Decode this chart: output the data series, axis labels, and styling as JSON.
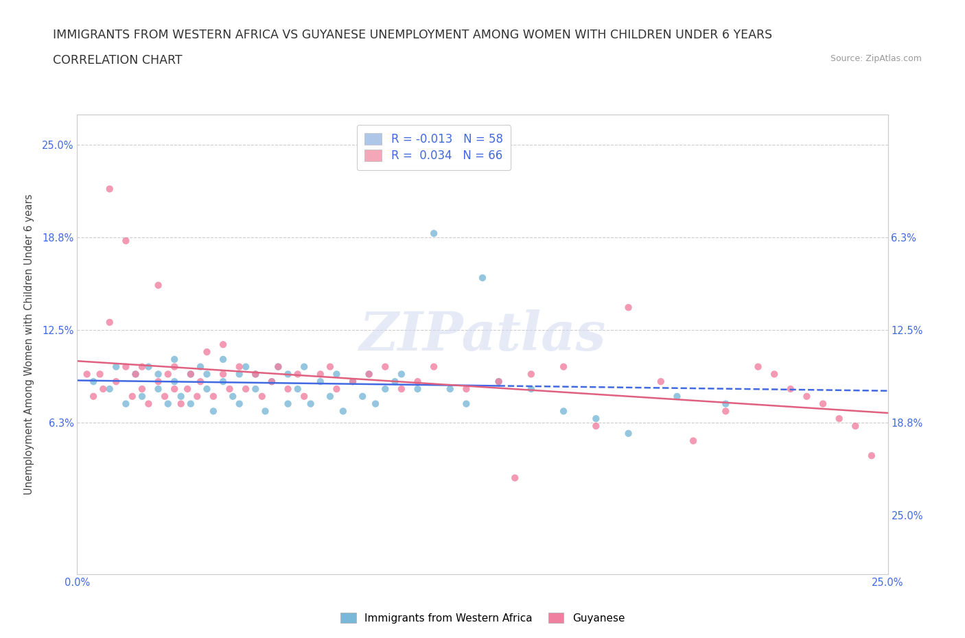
{
  "title_line1": "IMMIGRANTS FROM WESTERN AFRICA VS GUYANESE UNEMPLOYMENT AMONG WOMEN WITH CHILDREN UNDER 6 YEARS",
  "title_line2": "CORRELATION CHART",
  "source_text": "Source: ZipAtlas.com",
  "ylabel": "Unemployment Among Women with Children Under 6 years",
  "xlim": [
    0.0,
    0.25
  ],
  "ylim": [
    -0.04,
    0.27
  ],
  "ytick_positions": [
    0.0,
    0.0625,
    0.125,
    0.1875,
    0.25
  ],
  "left_ytick_labels": [
    "",
    "6.3%",
    "12.5%",
    "18.8%",
    "25.0%"
  ],
  "right_ytick_labels": [
    "25.0%",
    "18.8%",
    "12.5%",
    "6.3%",
    ""
  ],
  "xtick_positions": [
    0.0,
    0.05,
    0.1,
    0.15,
    0.2,
    0.25
  ],
  "xtick_labels": [
    "0.0%",
    "",
    "",
    "",
    "",
    "25.0%"
  ],
  "watermark_text": "ZIPatlas",
  "legend_entries": [
    {
      "label": "R = -0.013   N = 58",
      "facecolor": "#aec6e8"
    },
    {
      "label": "R =  0.034   N = 66",
      "facecolor": "#f4a7b9"
    }
  ],
  "series1_color": "#7ab8d9",
  "series2_color": "#f080a0",
  "trend1_color": "#4169e1",
  "trend2_color": "#e06080",
  "trend1_solid_end": 0.13,
  "background_color": "#ffffff",
  "grid_color": "#cccccc",
  "title_color": "#333333",
  "axis_label_color": "#4169e1",
  "scatter1_x": [
    0.005,
    0.01,
    0.012,
    0.015,
    0.018,
    0.02,
    0.022,
    0.025,
    0.025,
    0.028,
    0.03,
    0.03,
    0.032,
    0.035,
    0.035,
    0.038,
    0.04,
    0.04,
    0.042,
    0.045,
    0.045,
    0.048,
    0.05,
    0.05,
    0.052,
    0.055,
    0.055,
    0.058,
    0.06,
    0.062,
    0.065,
    0.065,
    0.068,
    0.07,
    0.072,
    0.075,
    0.078,
    0.08,
    0.082,
    0.085,
    0.088,
    0.09,
    0.092,
    0.095,
    0.098,
    0.1,
    0.105,
    0.11,
    0.115,
    0.12,
    0.125,
    0.13,
    0.14,
    0.15,
    0.16,
    0.17,
    0.185,
    0.2
  ],
  "scatter1_y": [
    0.09,
    0.085,
    0.1,
    0.075,
    0.095,
    0.08,
    0.1,
    0.085,
    0.095,
    0.075,
    0.09,
    0.105,
    0.08,
    0.095,
    0.075,
    0.1,
    0.085,
    0.095,
    0.07,
    0.09,
    0.105,
    0.08,
    0.095,
    0.075,
    0.1,
    0.085,
    0.095,
    0.07,
    0.09,
    0.1,
    0.075,
    0.095,
    0.085,
    0.1,
    0.075,
    0.09,
    0.08,
    0.095,
    0.07,
    0.09,
    0.08,
    0.095,
    0.075,
    0.085,
    0.09,
    0.095,
    0.085,
    0.19,
    0.085,
    0.075,
    0.16,
    0.09,
    0.085,
    0.07,
    0.065,
    0.055,
    0.08,
    0.075
  ],
  "scatter2_x": [
    0.003,
    0.005,
    0.007,
    0.008,
    0.01,
    0.01,
    0.012,
    0.015,
    0.015,
    0.017,
    0.018,
    0.02,
    0.02,
    0.022,
    0.025,
    0.025,
    0.027,
    0.028,
    0.03,
    0.03,
    0.032,
    0.034,
    0.035,
    0.037,
    0.038,
    0.04,
    0.042,
    0.045,
    0.045,
    0.047,
    0.05,
    0.052,
    0.055,
    0.057,
    0.06,
    0.062,
    0.065,
    0.068,
    0.07,
    0.075,
    0.078,
    0.08,
    0.085,
    0.09,
    0.095,
    0.1,
    0.105,
    0.11,
    0.12,
    0.13,
    0.135,
    0.14,
    0.15,
    0.16,
    0.17,
    0.18,
    0.19,
    0.2,
    0.21,
    0.215,
    0.22,
    0.225,
    0.23,
    0.235,
    0.24,
    0.245
  ],
  "scatter2_y": [
    0.095,
    0.08,
    0.095,
    0.085,
    0.22,
    0.13,
    0.09,
    0.185,
    0.1,
    0.08,
    0.095,
    0.085,
    0.1,
    0.075,
    0.155,
    0.09,
    0.08,
    0.095,
    0.085,
    0.1,
    0.075,
    0.085,
    0.095,
    0.08,
    0.09,
    0.11,
    0.08,
    0.095,
    0.115,
    0.085,
    0.1,
    0.085,
    0.095,
    0.08,
    0.09,
    0.1,
    0.085,
    0.095,
    0.08,
    0.095,
    0.1,
    0.085,
    0.09,
    0.095,
    0.1,
    0.085,
    0.09,
    0.1,
    0.085,
    0.09,
    0.025,
    0.095,
    0.1,
    0.06,
    0.14,
    0.09,
    0.05,
    0.07,
    0.1,
    0.095,
    0.085,
    0.08,
    0.075,
    0.065,
    0.06,
    0.04
  ]
}
